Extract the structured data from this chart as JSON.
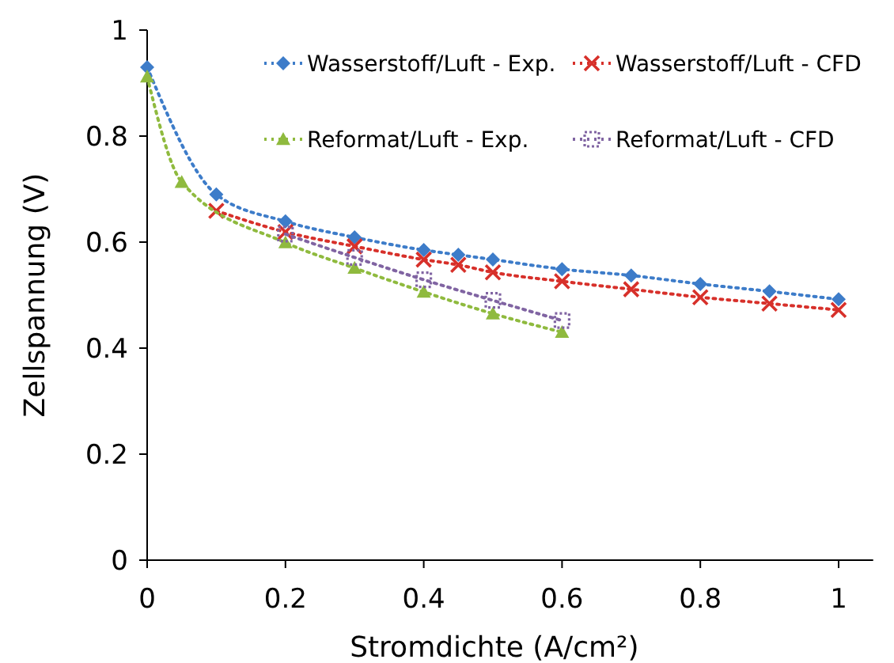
{
  "chart_data": {
    "type": "line",
    "xlabel": "Stromdichte (A/cm²)",
    "ylabel": "Zellspannung (V)",
    "xlim": [
      0,
      1.05
    ],
    "ylim": [
      0,
      1
    ],
    "xticks": [
      0,
      0.2,
      0.4,
      0.6,
      0.8,
      1
    ],
    "yticks": [
      0,
      0.2,
      0.4,
      0.6,
      0.8,
      1
    ],
    "grid": false,
    "legend": "top right",
    "line_style": "dotted",
    "series": [
      {
        "name": "Wasserstoff/Luft - Exp.",
        "color": "#3d7cc9",
        "marker": "diamond",
        "x": [
          0,
          0.1,
          0.2,
          0.3,
          0.4,
          0.45,
          0.5,
          0.6,
          0.7,
          0.8,
          0.9,
          1.0
        ],
        "values": [
          0.93,
          0.69,
          0.639,
          0.609,
          0.585,
          0.576,
          0.567,
          0.549,
          0.537,
          0.521,
          0.507,
          0.492
        ]
      },
      {
        "name": "Wasserstoff/Luft - CFD",
        "color": "#d7302a",
        "marker": "cross",
        "x": [
          0.1,
          0.2,
          0.3,
          0.4,
          0.45,
          0.5,
          0.6,
          0.7,
          0.8,
          0.9,
          1.0
        ],
        "values": [
          0.659,
          0.619,
          0.592,
          0.567,
          0.557,
          0.543,
          0.526,
          0.511,
          0.496,
          0.484,
          0.472
        ]
      },
      {
        "name": "Reformat/Luft - Exp.",
        "color": "#8fba3e",
        "marker": "triangle",
        "x": [
          0,
          0.05,
          0.2,
          0.3,
          0.4,
          0.5,
          0.6
        ],
        "values": [
          0.912,
          0.713,
          0.599,
          0.551,
          0.506,
          0.465,
          0.43
        ]
      },
      {
        "name": "Reformat/Luft - CFD",
        "color": "#8064a2",
        "marker": "square",
        "x": [
          0.2,
          0.3,
          0.4,
          0.5,
          0.6
        ],
        "values": [
          0.615,
          0.571,
          0.529,
          0.49,
          0.452
        ]
      }
    ]
  }
}
